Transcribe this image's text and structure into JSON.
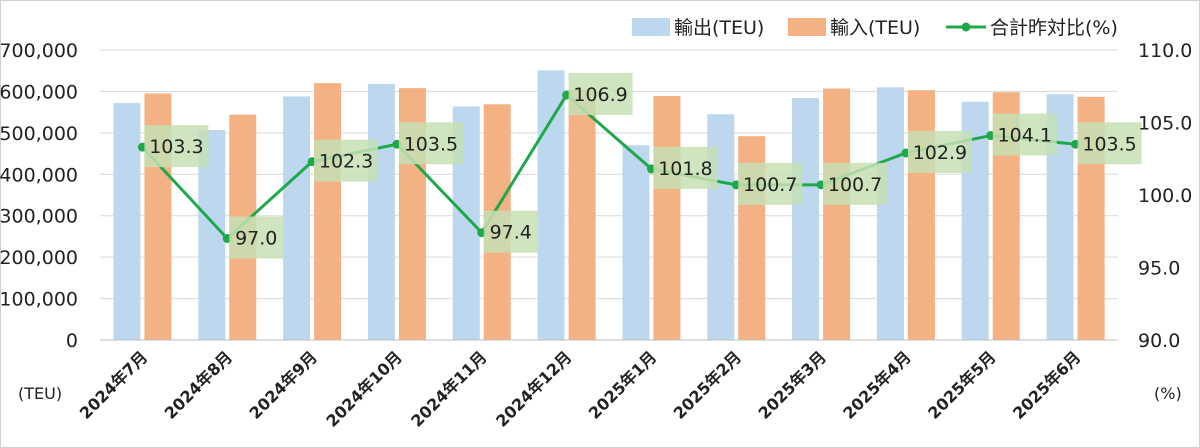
{
  "chart_data": {
    "type": "bar",
    "categories": [
      "2024年7月",
      "2024年8月",
      "2024年9月",
      "2024年10月",
      "2024年11月",
      "2024年12月",
      "2025年1月",
      "2025年2月",
      "2025年3月",
      "2025年4月",
      "2025年5月",
      "2025年6月"
    ],
    "series": [
      {
        "name": "輸出(TEU)",
        "type": "bar",
        "axis": "left",
        "color": "#bdd7ee",
        "values": [
          572000,
          507000,
          588000,
          618000,
          564000,
          651000,
          470000,
          545000,
          584000,
          610000,
          575000,
          593000
        ]
      },
      {
        "name": "輸入(TEU)",
        "type": "bar",
        "axis": "left",
        "color": "#f4b183",
        "values": [
          595000,
          544000,
          620000,
          608000,
          569000,
          604000,
          589000,
          492000,
          607000,
          603000,
          598000,
          587000
        ]
      },
      {
        "name": "合計昨対比(%)",
        "type": "line",
        "axis": "right",
        "color": "#1fa84a",
        "values": [
          103.3,
          97.0,
          102.3,
          103.5,
          97.4,
          106.9,
          101.8,
          100.7,
          100.7,
          102.9,
          104.1,
          103.5
        ],
        "labels": [
          "103.3",
          "97.0",
          "102.3",
          "103.5",
          "97.4",
          "106.9",
          "101.8",
          "100.7",
          "100.7",
          "102.9",
          "104.1",
          "103.5"
        ]
      }
    ],
    "y_left": {
      "range": [
        0,
        700000
      ],
      "ticks": [
        "0",
        "100,000",
        "200,000",
        "300,000",
        "400,000",
        "500,000",
        "600,000",
        "700,000"
      ],
      "unit": "(TEU)"
    },
    "y_right": {
      "range": [
        90,
        110
      ],
      "ticks": [
        "90.0",
        "95.0",
        "100.0",
        "105.0",
        "110.0"
      ],
      "unit": "(%)"
    },
    "grid": true,
    "legend_position": "top-right",
    "label_box_color": "#c6e0b4"
  }
}
